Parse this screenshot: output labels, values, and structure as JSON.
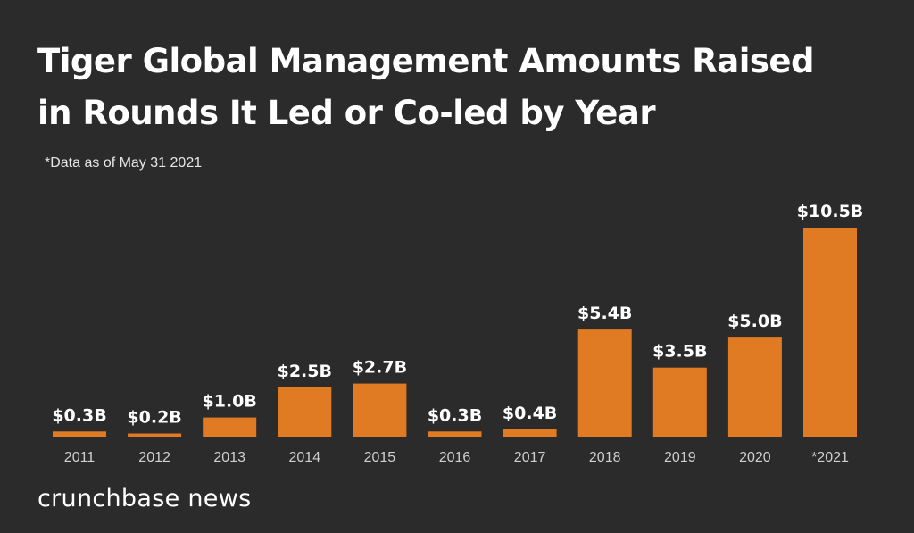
{
  "title_line1": "Tiger Global Management Amounts Raised",
  "title_line2": "in Rounds It Led or Co-led by Year",
  "note": "*Data as of May 31 2021",
  "brand": "crunchbase news",
  "colors": {
    "background": "#2b2b2b",
    "bar": "#e07b24",
    "text": "#ffffff",
    "tick": "#cfcfcf"
  },
  "chart_data": {
    "type": "bar",
    "title": "Tiger Global Management Amounts Raised in Rounds It Led or Co-led by Year",
    "xlabel": "",
    "ylabel": "",
    "unit": "B",
    "categories": [
      "2011",
      "2012",
      "2013",
      "2014",
      "2015",
      "2016",
      "2017",
      "2018",
      "2019",
      "2020",
      "*2021"
    ],
    "values": [
      0.3,
      0.2,
      1.0,
      2.5,
      2.7,
      0.3,
      0.4,
      5.4,
      3.5,
      5.0,
      10.5
    ],
    "labels": [
      "$0.3B",
      "$0.2B",
      "$1.0B",
      "$2.5B",
      "$2.7B",
      "$0.3B",
      "$0.4B",
      "$5.4B",
      "$3.5B",
      "$5.0B",
      "$10.5B"
    ],
    "ylim": [
      0,
      10.5
    ],
    "grid": false,
    "legend": "none"
  }
}
